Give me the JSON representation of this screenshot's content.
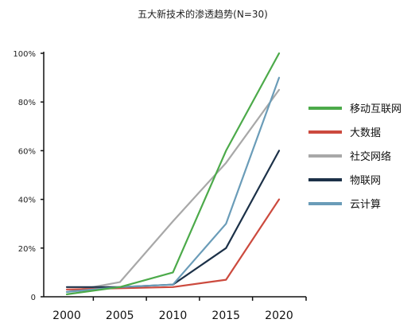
{
  "chart_data": {
    "type": "line",
    "title": "五大新技术的渗透趋势(N=30)",
    "x": [
      2000,
      2005,
      2010,
      2015,
      2020
    ],
    "x_tick_labels": [
      "2000",
      "2005",
      "2010",
      "2015",
      "2020"
    ],
    "ylim": [
      0,
      100
    ],
    "y_ticks": [
      0,
      20,
      40,
      60,
      80,
      100
    ],
    "y_tick_labels": [
      "0",
      "20%",
      "40%",
      "60%",
      "80%",
      "100%"
    ],
    "xlabel": "",
    "ylabel": "",
    "grid": false,
    "legend_position": "right",
    "series": [
      {
        "name": "移动互联网",
        "color": "#4caa4a",
        "values": [
          1,
          4,
          10,
          60,
          100
        ]
      },
      {
        "name": "大数据",
        "color": "#cc4a3e",
        "values": [
          3,
          3.5,
          4,
          7,
          40
        ]
      },
      {
        "name": "社交网络",
        "color": "#a8a8a8",
        "values": [
          2,
          6,
          31,
          55,
          85
        ]
      },
      {
        "name": "物联网",
        "color": "#1c3148",
        "values": [
          4,
          4,
          5,
          20,
          60
        ]
      },
      {
        "name": "云计算",
        "color": "#6a9cb8",
        "values": [
          2,
          4,
          5,
          30,
          90
        ]
      }
    ]
  }
}
